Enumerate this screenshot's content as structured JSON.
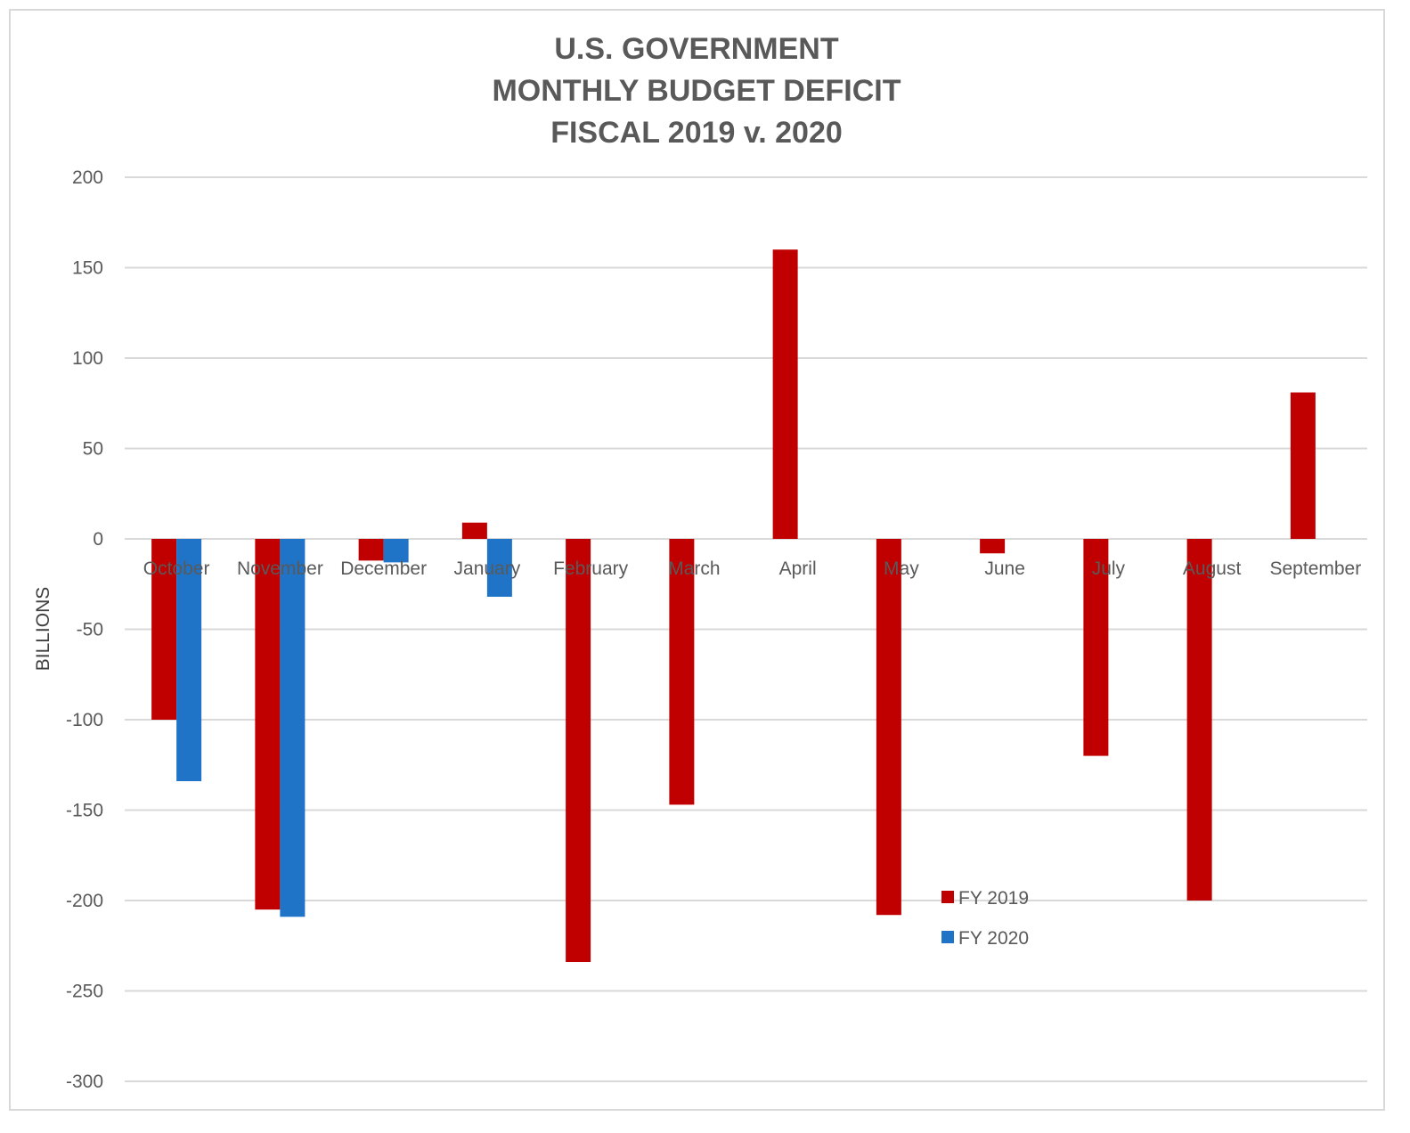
{
  "chart_data": {
    "type": "bar",
    "title": [
      "U.S. GOVERNMENT",
      "MONTHLY BUDGET DEFICIT",
      "FISCAL 2019 v. 2020"
    ],
    "xlabel": "",
    "ylabel": "BILLIONS",
    "ylim": [
      -300,
      200
    ],
    "yticks": [
      200,
      150,
      100,
      50,
      0,
      -50,
      -100,
      -150,
      -200,
      -250,
      -300
    ],
    "grid": true,
    "legend_position": "lower-center",
    "categories": [
      "October",
      "November",
      "December",
      "January",
      "February",
      "March",
      "April",
      "May",
      "June",
      "July",
      "August",
      "September"
    ],
    "series": [
      {
        "name": "FY 2019",
        "color": "#c00000",
        "values": [
          -100,
          -205,
          -12,
          9,
          -234,
          -147,
          160,
          -208,
          -8,
          -120,
          -200,
          81
        ]
      },
      {
        "name": "FY 2020",
        "color": "#1f74c8",
        "values": [
          -134,
          -209,
          -13,
          -32,
          null,
          null,
          null,
          null,
          null,
          null,
          null,
          null
        ]
      }
    ]
  }
}
